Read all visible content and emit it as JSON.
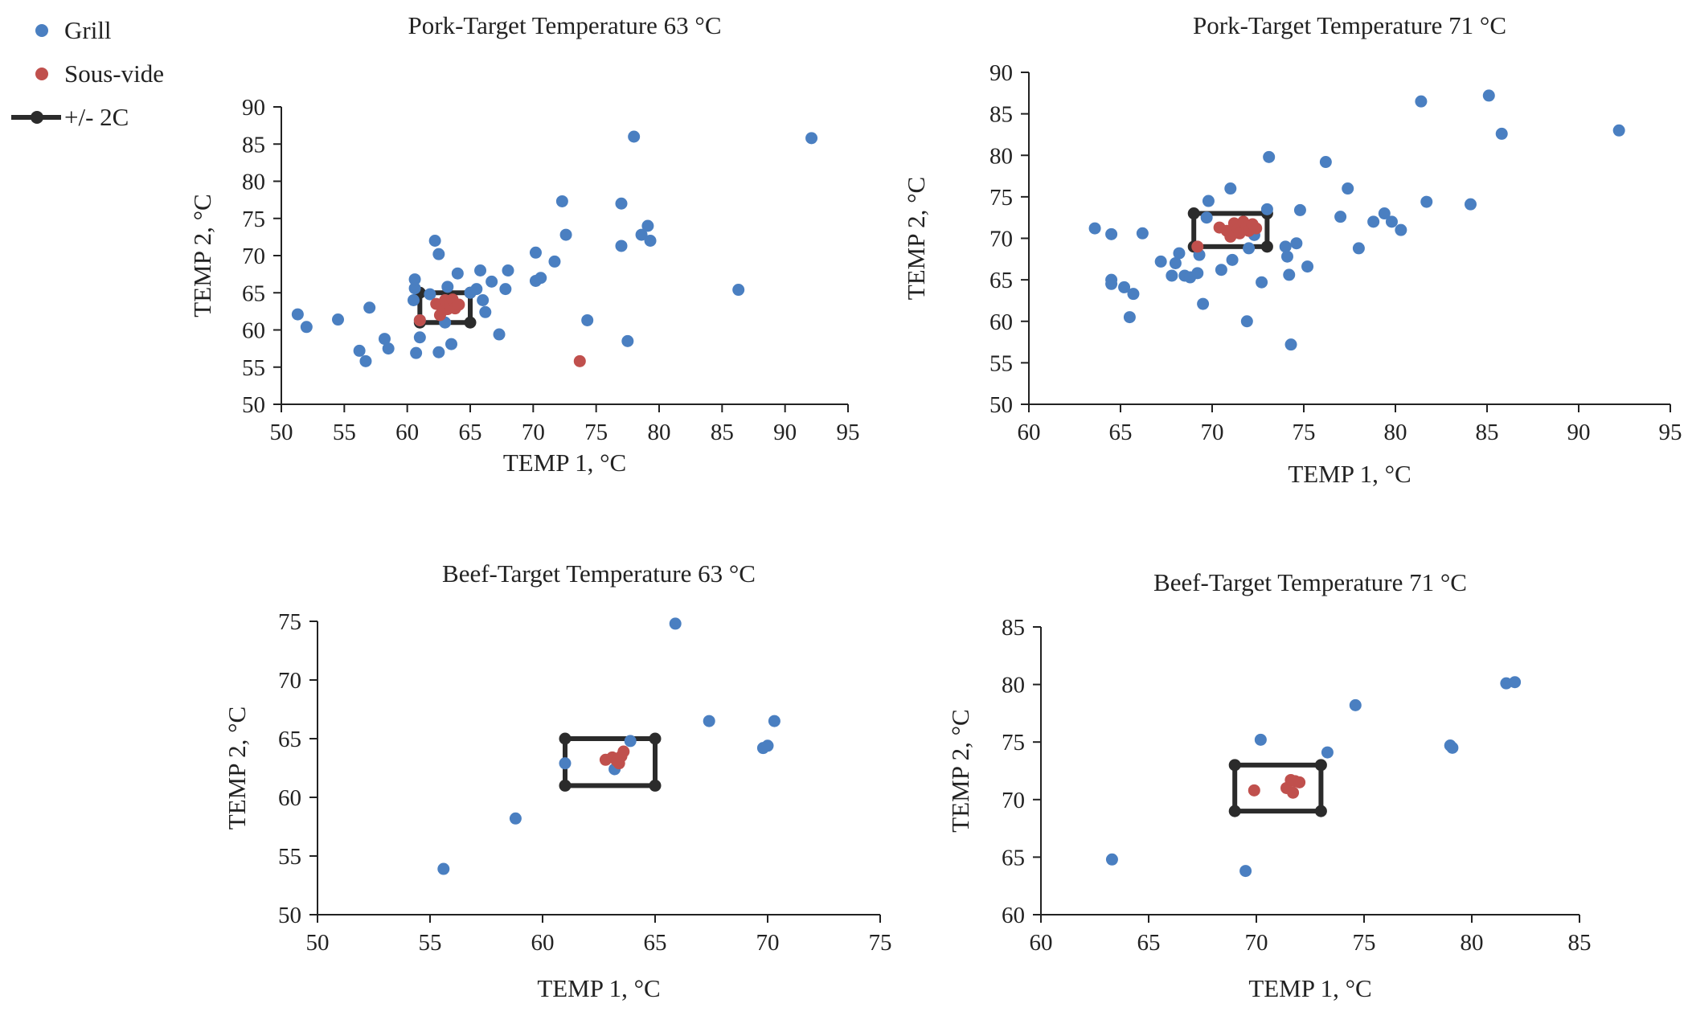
{
  "colors": {
    "grill": "#4a7fc1",
    "sous_vide": "#c0504d",
    "band": "#2b2b2b",
    "axis": "#222222"
  },
  "legend": {
    "grill": "Grill",
    "sous_vide": "Sous-vide",
    "band": "+/- 2C"
  },
  "chart_data": [
    {
      "type": "scatter",
      "title": "Pork-Target Temperature 63 °C",
      "xlabel": "TEMP 1, °C",
      "ylabel": "TEMP 2, °C",
      "xlim": [
        50,
        95
      ],
      "ylim": [
        50,
        90
      ],
      "xticks": [
        50,
        55,
        60,
        65,
        70,
        75,
        80,
        85,
        90,
        95
      ],
      "yticks": [
        50,
        55,
        60,
        65,
        70,
        75,
        80,
        85,
        90
      ],
      "target_box": {
        "label": "+/- 2C",
        "x": [
          61,
          65
        ],
        "y": [
          61,
          65
        ]
      },
      "series": [
        {
          "name": "Grill",
          "points": [
            [
              51.3,
              62.1
            ],
            [
              52,
              60.4
            ],
            [
              54.5,
              61.4
            ],
            [
              56.2,
              57.2
            ],
            [
              56.7,
              55.8
            ],
            [
              57,
              63
            ],
            [
              58.2,
              58.8
            ],
            [
              58.5,
              57.5
            ],
            [
              60.5,
              64
            ],
            [
              60.6,
              65.6
            ],
            [
              60.6,
              66.8
            ],
            [
              60.7,
              56.9
            ],
            [
              61,
              61.3
            ],
            [
              61,
              59
            ],
            [
              61.8,
              64.8
            ],
            [
              62.2,
              72
            ],
            [
              62.5,
              70.2
            ],
            [
              62.5,
              57
            ],
            [
              63,
              61
            ],
            [
              63.2,
              65.8
            ],
            [
              63.5,
              58.1
            ],
            [
              64,
              67.6
            ],
            [
              65,
              65
            ],
            [
              65.5,
              65.5
            ],
            [
              65.8,
              68
            ],
            [
              66,
              64
            ],
            [
              66.2,
              62.4
            ],
            [
              66.7,
              66.5
            ],
            [
              67.3,
              59.4
            ],
            [
              67.8,
              65.5
            ],
            [
              68,
              68
            ],
            [
              70.2,
              70.4
            ],
            [
              70.2,
              66.6
            ],
            [
              70.6,
              67
            ],
            [
              71.7,
              69.2
            ],
            [
              72.3,
              77.3
            ],
            [
              72.6,
              72.8
            ],
            [
              74.3,
              61.3
            ],
            [
              77,
              77
            ],
            [
              77,
              71.3
            ],
            [
              77.5,
              58.5
            ],
            [
              78,
              86
            ],
            [
              78.6,
              72.8
            ],
            [
              79.1,
              74
            ],
            [
              79.3,
              72
            ],
            [
              86.3,
              65.4
            ],
            [
              92.1,
              85.8
            ]
          ]
        },
        {
          "name": "Sous-vide",
          "points": [
            [
              61,
              61.3
            ],
            [
              62.3,
              63.5
            ],
            [
              62.6,
              62
            ],
            [
              62.8,
              62.6
            ],
            [
              63,
              64
            ],
            [
              63.2,
              62.8
            ],
            [
              63.4,
              63.3
            ],
            [
              63.6,
              64.1
            ],
            [
              63.8,
              62.9
            ],
            [
              64.1,
              63.4
            ],
            [
              73.7,
              55.8
            ]
          ]
        }
      ]
    },
    {
      "type": "scatter",
      "title": "Pork-Target Temperature 71 °C",
      "xlabel": "TEMP 1, °C",
      "ylabel": "TEMP 2, °C",
      "xlim": [
        60,
        95
      ],
      "ylim": [
        50,
        90
      ],
      "xticks": [
        60,
        65,
        70,
        75,
        80,
        85,
        90,
        95
      ],
      "yticks": [
        50,
        55,
        60,
        65,
        70,
        75,
        80,
        85,
        90
      ],
      "target_box": {
        "label": "+/- 2C",
        "x": [
          69,
          73
        ],
        "y": [
          69,
          73
        ]
      },
      "series": [
        {
          "name": "Grill",
          "points": [
            [
              63.6,
              71.2
            ],
            [
              64.5,
              70.5
            ],
            [
              64.5,
              65
            ],
            [
              64.5,
              64.5
            ],
            [
              65.2,
              64.1
            ],
            [
              65.5,
              60.5
            ],
            [
              65.7,
              63.3
            ],
            [
              66.2,
              70.6
            ],
            [
              67.2,
              67.2
            ],
            [
              67.8,
              65.5
            ],
            [
              68,
              67
            ],
            [
              68.2,
              68.2
            ],
            [
              68.5,
              65.5
            ],
            [
              68.8,
              65.3
            ],
            [
              69.2,
              65.8
            ],
            [
              69.3,
              68
            ],
            [
              69.5,
              62.1
            ],
            [
              69.7,
              72.5
            ],
            [
              69.8,
              74.5
            ],
            [
              70.5,
              66.2
            ],
            [
              71,
              76
            ],
            [
              71.1,
              67.4
            ],
            [
              71.9,
              60
            ],
            [
              72,
              68.8
            ],
            [
              72.3,
              70.4
            ],
            [
              72.7,
              64.7
            ],
            [
              73,
              73.5
            ],
            [
              73.1,
              79.8
            ],
            [
              74,
              69
            ],
            [
              74.1,
              67.8
            ],
            [
              74.2,
              65.6
            ],
            [
              74.3,
              57.2
            ],
            [
              74.6,
              69.4
            ],
            [
              74.8,
              73.4
            ],
            [
              75.2,
              66.6
            ],
            [
              76.2,
              79.2
            ],
            [
              77,
              72.6
            ],
            [
              77.4,
              76
            ],
            [
              78,
              68.8
            ],
            [
              78.8,
              72
            ],
            [
              79.4,
              73
            ],
            [
              79.8,
              72
            ],
            [
              80.3,
              71
            ],
            [
              81.4,
              86.5
            ],
            [
              81.7,
              74.4
            ],
            [
              84.1,
              74.1
            ],
            [
              85.1,
              87.2
            ],
            [
              85.8,
              82.6
            ],
            [
              92.2,
              83
            ]
          ]
        },
        {
          "name": "Sous-vide",
          "points": [
            [
              69.2,
              69
            ],
            [
              70.4,
              71.3
            ],
            [
              70.8,
              70.9
            ],
            [
              71,
              70.2
            ],
            [
              71.2,
              71.8
            ],
            [
              71.4,
              71.1
            ],
            [
              71.5,
              70.6
            ],
            [
              71.7,
              72
            ],
            [
              71.9,
              71.4
            ],
            [
              72,
              70.9
            ],
            [
              72.2,
              71.7
            ],
            [
              72.4,
              71.2
            ]
          ]
        }
      ]
    },
    {
      "type": "scatter",
      "title": "Beef-Target Temperature 63 °C",
      "xlabel": "TEMP 1, °C",
      "ylabel": "TEMP 2, °C",
      "xlim": [
        50,
        75
      ],
      "ylim": [
        50,
        75
      ],
      "xticks": [
        50,
        55,
        60,
        65,
        70,
        75
      ],
      "yticks": [
        50,
        55,
        60,
        65,
        70,
        75
      ],
      "target_box": {
        "label": "+/- 2C",
        "x": [
          61,
          65
        ],
        "y": [
          61,
          65
        ]
      },
      "series": [
        {
          "name": "Grill",
          "points": [
            [
              55.6,
              53.9
            ],
            [
              58.8,
              58.2
            ],
            [
              61,
              62.9
            ],
            [
              63.2,
              62.4
            ],
            [
              63.9,
              64.8
            ],
            [
              65.9,
              74.8
            ],
            [
              67.4,
              66.5
            ],
            [
              69.8,
              64.2
            ],
            [
              70,
              64.4
            ],
            [
              70.3,
              66.5
            ]
          ]
        },
        {
          "name": "Sous-vide",
          "points": [
            [
              62.8,
              63.2
            ],
            [
              63.1,
              63.4
            ],
            [
              63.3,
              63.1
            ],
            [
              63.5,
              63.5
            ],
            [
              63.6,
              63.9
            ],
            [
              63.4,
              62.9
            ]
          ]
        }
      ]
    },
    {
      "type": "scatter",
      "title": "Beef-Target Temperature 71 °C",
      "xlabel": "TEMP 1, °C",
      "ylabel": "TEMP 2, °C",
      "xlim": [
        60,
        85
      ],
      "ylim": [
        60,
        85
      ],
      "xticks": [
        60,
        65,
        70,
        75,
        80,
        85
      ],
      "yticks": [
        60,
        65,
        70,
        75,
        80,
        85
      ],
      "target_box": {
        "label": "+/- 2C",
        "x": [
          69,
          73
        ],
        "y": [
          69,
          73
        ]
      },
      "series": [
        {
          "name": "Grill",
          "points": [
            [
              63.3,
              64.8
            ],
            [
              69.5,
              63.8
            ],
            [
              70.2,
              75.2
            ],
            [
              73.3,
              74.1
            ],
            [
              74.6,
              78.2
            ],
            [
              79,
              74.7
            ],
            [
              79.1,
              74.5
            ],
            [
              81.6,
              80.1
            ],
            [
              82,
              80.2
            ]
          ]
        },
        {
          "name": "Sous-vide",
          "points": [
            [
              69.9,
              70.8
            ],
            [
              71.4,
              71
            ],
            [
              71.6,
              71.7
            ],
            [
              71.8,
              71.6
            ],
            [
              72,
              71.5
            ],
            [
              71.7,
              70.6
            ]
          ]
        }
      ]
    }
  ]
}
